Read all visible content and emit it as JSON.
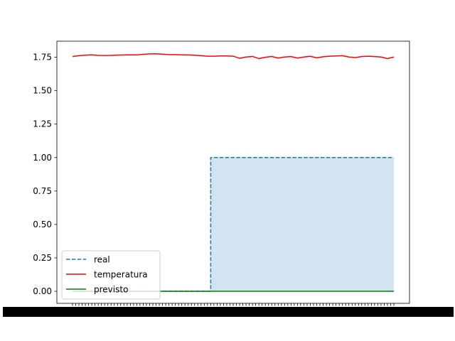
{
  "chart_data": {
    "type": "line",
    "title": "",
    "xlabel": "",
    "ylabel": "",
    "ylim": [
      -0.09,
      1.87
    ],
    "yticks": [
      "0.00",
      "0.25",
      "0.50",
      "0.75",
      "1.00",
      "1.25",
      "1.50",
      "1.75"
    ],
    "ytick_values": [
      0.0,
      0.25,
      0.5,
      0.75,
      1.0,
      1.25,
      1.5,
      1.75
    ],
    "x_index_range": [
      0,
      100
    ],
    "x_ticks_unreadable": true,
    "grid": false,
    "legend_position": "lower-left",
    "series": [
      {
        "name": "real",
        "style": "dashed",
        "color": "#1f77b4",
        "fill_under": true,
        "fill_color": "#1f77b4",
        "x": [
          0,
          43,
          43,
          100
        ],
        "values": [
          0,
          0,
          1,
          1
        ]
      },
      {
        "name": "temperatura",
        "style": "solid",
        "color": "#ff0000",
        "x": [
          0,
          2,
          4,
          6,
          8,
          10,
          12,
          14,
          16,
          18,
          20,
          22,
          24,
          26,
          28,
          30,
          32,
          34,
          36,
          38,
          40,
          42,
          44,
          46,
          48,
          50,
          52,
          54,
          56,
          58,
          60,
          62,
          64,
          66,
          68,
          70,
          72,
          74,
          76,
          78,
          80,
          82,
          84,
          86,
          88,
          90,
          92,
          94,
          96,
          98,
          100
        ],
        "values": [
          1.755,
          1.762,
          1.765,
          1.768,
          1.764,
          1.763,
          1.764,
          1.766,
          1.767,
          1.768,
          1.768,
          1.772,
          1.775,
          1.776,
          1.773,
          1.77,
          1.77,
          1.768,
          1.767,
          1.765,
          1.762,
          1.758,
          1.758,
          1.76,
          1.76,
          1.758,
          1.742,
          1.752,
          1.756,
          1.74,
          1.75,
          1.756,
          1.744,
          1.752,
          1.755,
          1.744,
          1.752,
          1.757,
          1.746,
          1.754,
          1.758,
          1.76,
          1.762,
          1.752,
          1.748,
          1.755,
          1.758,
          1.755,
          1.752,
          1.74,
          1.752
        ]
      },
      {
        "name": "previsto",
        "style": "solid",
        "color": "#008000",
        "x": [
          0,
          100
        ],
        "values": [
          0,
          0
        ]
      }
    ]
  }
}
